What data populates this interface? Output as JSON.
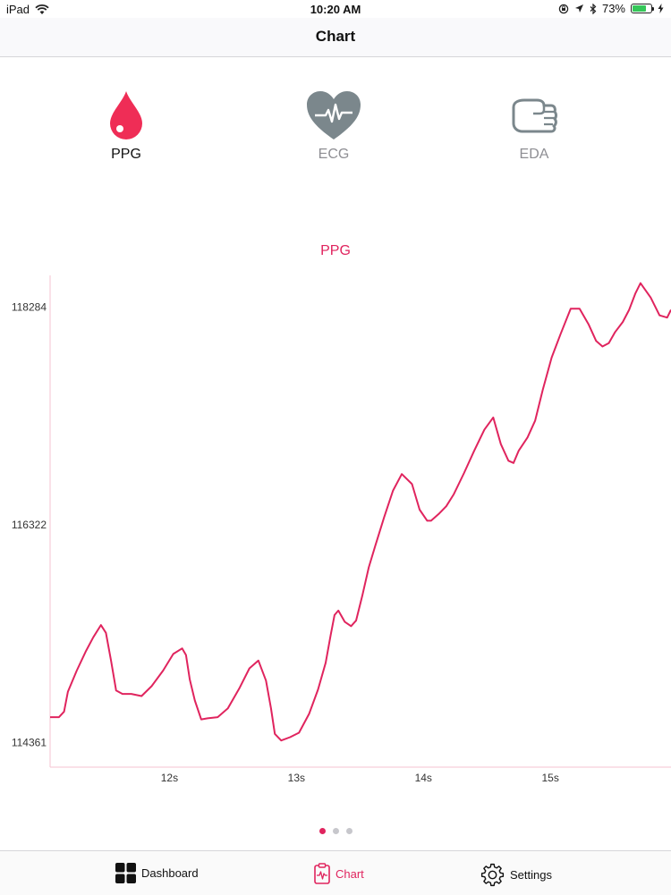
{
  "status_bar": {
    "device": "iPad",
    "time": "10:20 AM",
    "battery_text": "73%",
    "battery_level": 0.73
  },
  "nav": {
    "title": "Chart"
  },
  "sensors": [
    {
      "label": "PPG",
      "icon": "blood-drop-icon",
      "active": true
    },
    {
      "label": "ECG",
      "icon": "heart-ecg-icon",
      "active": false
    },
    {
      "label": "EDA",
      "icon": "hand-icon",
      "active": false
    }
  ],
  "chart_data": {
    "type": "line",
    "title": "PPG",
    "xlabel": "",
    "ylabel": "",
    "x_tick_labels": [
      "12s",
      "13s",
      "14s",
      "15s"
    ],
    "x_ticks": [
      12,
      13,
      14,
      15
    ],
    "y_tick_labels": [
      "118284",
      "116322",
      "114361"
    ],
    "y_ticks": [
      118284,
      116322,
      114361
    ],
    "xlim": [
      11.06,
      15.95
    ],
    "ylim": [
      114140,
      118570
    ],
    "grid": false,
    "legend": "none",
    "color": "#e0245e",
    "series": [
      {
        "x": [
          11.06,
          11.13,
          11.17,
          11.2,
          11.27,
          11.34,
          11.4,
          11.46,
          11.5,
          11.54,
          11.58,
          11.63,
          11.7,
          11.78,
          11.86,
          11.95,
          12.03,
          12.1,
          12.13,
          12.16,
          12.2,
          12.25,
          12.3,
          12.38,
          12.46,
          12.55,
          12.63,
          12.7,
          12.76,
          12.8,
          12.83,
          12.88,
          12.95,
          13.02,
          13.1,
          13.17,
          13.23,
          13.27,
          13.3,
          13.33,
          13.38,
          13.43,
          13.47,
          13.52,
          13.57,
          13.62,
          13.69,
          13.76,
          13.83,
          13.91,
          13.97,
          14.03,
          14.06,
          14.12,
          14.18,
          14.24,
          14.32,
          14.4,
          14.48,
          14.55,
          14.61,
          14.67,
          14.71,
          14.75,
          14.82,
          14.88,
          14.94,
          15.01,
          15.08,
          15.16,
          15.23,
          15.3,
          15.36,
          15.41,
          15.46,
          15.51,
          15.57,
          15.62,
          15.67,
          15.71,
          15.79,
          15.86,
          15.92,
          15.95
        ],
        "y": [
          114590,
          114590,
          114640,
          114820,
          115010,
          115180,
          115310,
          115420,
          115350,
          115100,
          114830,
          114800,
          114800,
          114780,
          114870,
          115010,
          115160,
          115210,
          115150,
          114930,
          114740,
          114570,
          114580,
          114590,
          114670,
          114850,
          115030,
          115100,
          114920,
          114670,
          114440,
          114380,
          114410,
          114450,
          114620,
          114840,
          115080,
          115330,
          115510,
          115550,
          115450,
          115410,
          115460,
          115690,
          115940,
          116130,
          116390,
          116630,
          116780,
          116690,
          116460,
          116360,
          116360,
          116420,
          116490,
          116600,
          116790,
          116990,
          117180,
          117290,
          117050,
          116900,
          116880,
          116990,
          117110,
          117260,
          117540,
          117830,
          118040,
          118270,
          118270,
          118130,
          117980,
          117930,
          117960,
          118060,
          118150,
          118260,
          118410,
          118500,
          118370,
          118210,
          118190,
          118260
        ]
      }
    ]
  },
  "page_dots": {
    "count": 3,
    "active": 0
  },
  "tab_bar": [
    {
      "label": "Dashboard",
      "icon": "grid-icon",
      "active": false
    },
    {
      "label": "Chart",
      "icon": "chart-clipboard-icon",
      "active": true
    },
    {
      "label": "Settings",
      "icon": "gear-icon",
      "active": false
    }
  ]
}
